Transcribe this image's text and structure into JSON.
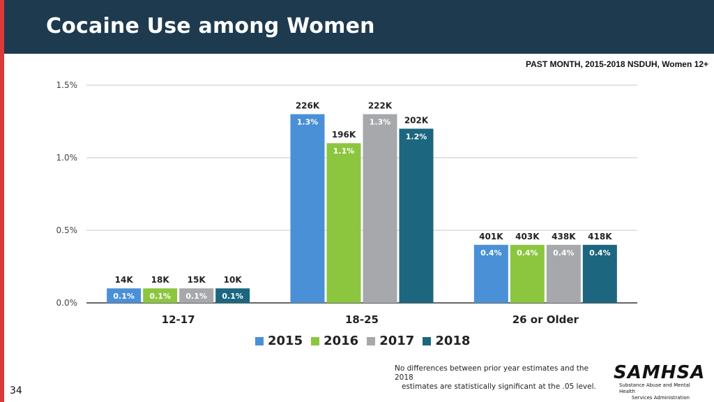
{
  "title": "Cocaine Use among Women",
  "subtitle": "PAST MONTH, 2015-2018 NSDUH, Women 12+",
  "chart_data": {
    "type": "bar",
    "categories": [
      "12-17",
      "18-25",
      "26 or Older"
    ],
    "series": [
      {
        "name": "2015",
        "color": "#4a90d6",
        "values": [
          0.1,
          1.3,
          0.4
        ],
        "count_labels": [
          "14K",
          "226K",
          "401K"
        ]
      },
      {
        "name": "2016",
        "color": "#8cc63f",
        "values": [
          0.1,
          1.1,
          0.4
        ],
        "count_labels": [
          "18K",
          "196K",
          "403K"
        ]
      },
      {
        "name": "2017",
        "color": "#a6a8ab",
        "values": [
          0.1,
          1.3,
          0.4
        ],
        "count_labels": [
          "15K",
          "222K",
          "438K"
        ]
      },
      {
        "name": "2018",
        "color": "#1c6680",
        "values": [
          0.1,
          1.2,
          0.4
        ],
        "count_labels": [
          "10K",
          "202K",
          "418K"
        ]
      }
    ],
    "y_ticks": [
      "0.0%",
      "0.5%",
      "1.0%",
      "1.5%"
    ],
    "y_tick_values": [
      0,
      0.5,
      1.0,
      1.5
    ],
    "ylim": [
      0,
      1.5
    ],
    "value_suffix": "%",
    "grid": true,
    "legend_position": "bottom"
  },
  "footnote": {
    "line1": "No differences between prior year estimates and the 2018",
    "line2": "estimates are statistically significant at the .05 level."
  },
  "logo": {
    "name": "SAMHSA",
    "line1": "Substance Abuse and Mental Health",
    "line2": "Services Administration"
  },
  "page_number": "34"
}
